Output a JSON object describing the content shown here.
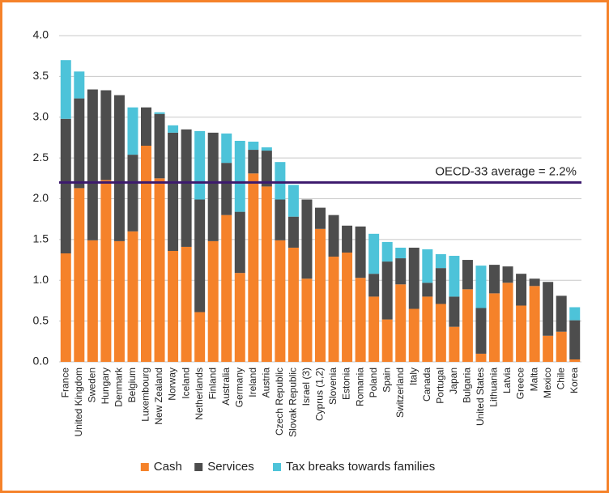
{
  "chart_data": {
    "type": "stacked_bar",
    "categories": [
      "France",
      "United Kingdom",
      "Sweden",
      "Hungary",
      "Denmark",
      "Belgium",
      "Luxembourg",
      "New Zealand",
      "Norway",
      "Iceland",
      "Netherlands",
      "Finland",
      "Australia",
      "Germany",
      "Ireland",
      "Austria",
      "Czech Republic",
      "Slovak Republic",
      "Israel (3)",
      "Cyprus (1,2)",
      "Slovenia",
      "Estonia",
      "Romania",
      "Poland",
      "Spain",
      "Switzerland",
      "Italy",
      "Canada",
      "Portugal",
      "Japan",
      "Bulgaria",
      "United States",
      "Lithuania",
      "Latvia",
      "Greece",
      "Malta",
      "Mexico",
      "Chile",
      "Korea"
    ],
    "series": [
      {
        "name": "Cash",
        "color": "#f5822a",
        "values": [
          1.33,
          2.13,
          1.49,
          2.23,
          1.48,
          1.6,
          2.65,
          2.25,
          1.36,
          1.41,
          0.61,
          1.48,
          1.8,
          1.09,
          2.31,
          2.15,
          1.49,
          1.4,
          1.02,
          1.63,
          1.29,
          1.34,
          1.03,
          0.8,
          0.52,
          0.95,
          0.65,
          0.8,
          0.71,
          0.43,
          0.89,
          0.1,
          0.84,
          0.97,
          0.69,
          0.93,
          0.32,
          0.37,
          0.03
        ]
      },
      {
        "name": "Services",
        "color": "#4d4d4d",
        "values": [
          1.65,
          1.1,
          1.85,
          1.1,
          1.79,
          0.94,
          0.47,
          0.79,
          1.45,
          1.44,
          1.38,
          1.33,
          0.64,
          0.75,
          0.29,
          0.44,
          0.5,
          0.38,
          0.97,
          0.26,
          0.51,
          0.33,
          0.63,
          0.28,
          0.71,
          0.32,
          0.75,
          0.17,
          0.44,
          0.37,
          0.36,
          0.56,
          0.35,
          0.2,
          0.39,
          0.09,
          0.66,
          0.44,
          0.48
        ]
      },
      {
        "name": "Tax breaks towards families",
        "color": "#4dc3d9",
        "values": [
          0.72,
          0.33,
          0,
          0,
          0,
          0.58,
          0,
          0.02,
          0.09,
          0,
          0.84,
          0,
          0.36,
          0.87,
          0.1,
          0.04,
          0.46,
          0.39,
          0,
          0,
          0,
          0,
          0,
          0.49,
          0.24,
          0.13,
          0,
          0.41,
          0.17,
          0.5,
          0,
          0.52,
          0,
          0,
          0,
          0,
          0,
          0,
          0.16
        ]
      }
    ],
    "ylim": [
      0,
      4
    ],
    "yticks": [
      {
        "value": 0,
        "label": "0.0"
      },
      0.5,
      {
        "value": 1,
        "label": "1.0"
      },
      1.5,
      {
        "value": 2,
        "label": "2.0"
      },
      2.5,
      {
        "value": 3,
        "label": "3.0"
      },
      3.5,
      {
        "value": 4,
        "label": "4.0"
      }
    ],
    "grid": true,
    "reference_line": {
      "value": 2.2,
      "label": "OECD-33 average = 2.2%",
      "color": "#3d1a6e"
    },
    "legend": "bottom"
  }
}
